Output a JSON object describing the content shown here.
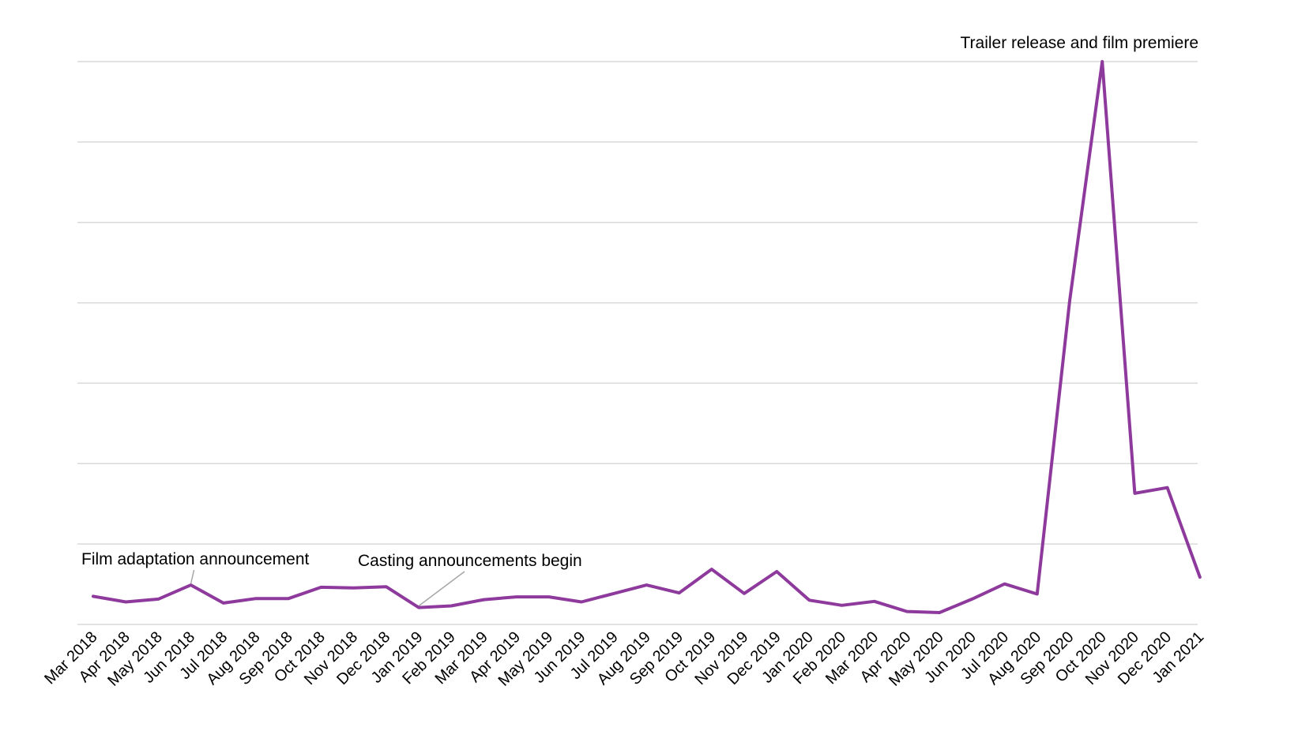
{
  "chart_data": {
    "type": "line",
    "title": "",
    "xlabel": "",
    "ylabel": "",
    "ylim": [
      0,
      100
    ],
    "y_ticks": [
      0,
      14.29,
      28.57,
      42.86,
      57.14,
      71.43,
      85.71,
      100
    ],
    "y_tick_labels_shown": false,
    "grid": "horizontal",
    "legend": "none",
    "categories": [
      "Mar 2018",
      "Apr 2018",
      "May 2018",
      "Jun 2018",
      "Jul 2018",
      "Aug 2018",
      "Sep 2018",
      "Oct 2018",
      "Nov 2018",
      "Dec 2018",
      "Jan 2019",
      "Feb 2019",
      "Mar 2019",
      "Apr 2019",
      "May 2019",
      "Jun 2019",
      "Jul 2019",
      "Aug 2019",
      "Sep 2019",
      "Oct 2019",
      "Nov 2019",
      "Dec 2019",
      "Jan 2020",
      "Feb 2020",
      "Mar 2020",
      "Apr 2020",
      "May 2020",
      "Jun 2020",
      "Jul 2020",
      "Aug 2020",
      "Sep 2020",
      "Oct 2020",
      "Nov 2020",
      "Dec 2020",
      "Jan 2021"
    ],
    "series": [
      {
        "name": "",
        "color": "#8e3a9d",
        "values": [
          5,
          4,
          4.5,
          7,
          3.8,
          4.6,
          4.6,
          6.6,
          6.5,
          6.7,
          3,
          3.3,
          4.4,
          4.9,
          4.9,
          4,
          5.5,
          7,
          5.6,
          9.8,
          5.5,
          9.4,
          4.3,
          3.4,
          4.1,
          2.3,
          2.1,
          4.5,
          7.2,
          5.4,
          57.5,
          100,
          23.3,
          24.3,
          8.4
        ]
      }
    ],
    "annotations": [
      {
        "text": "Film adaptation announcement",
        "category": "Jun 2018"
      },
      {
        "text": "Casting announcements begin",
        "category": "Jan 2019"
      },
      {
        "text": "Trailer release and film premiere",
        "category": "Oct 2020"
      }
    ]
  },
  "colors": {
    "series": "#8e3a9d",
    "grid": "#d9d9d9",
    "leader": "#a6a6a6",
    "text": "#000000"
  }
}
